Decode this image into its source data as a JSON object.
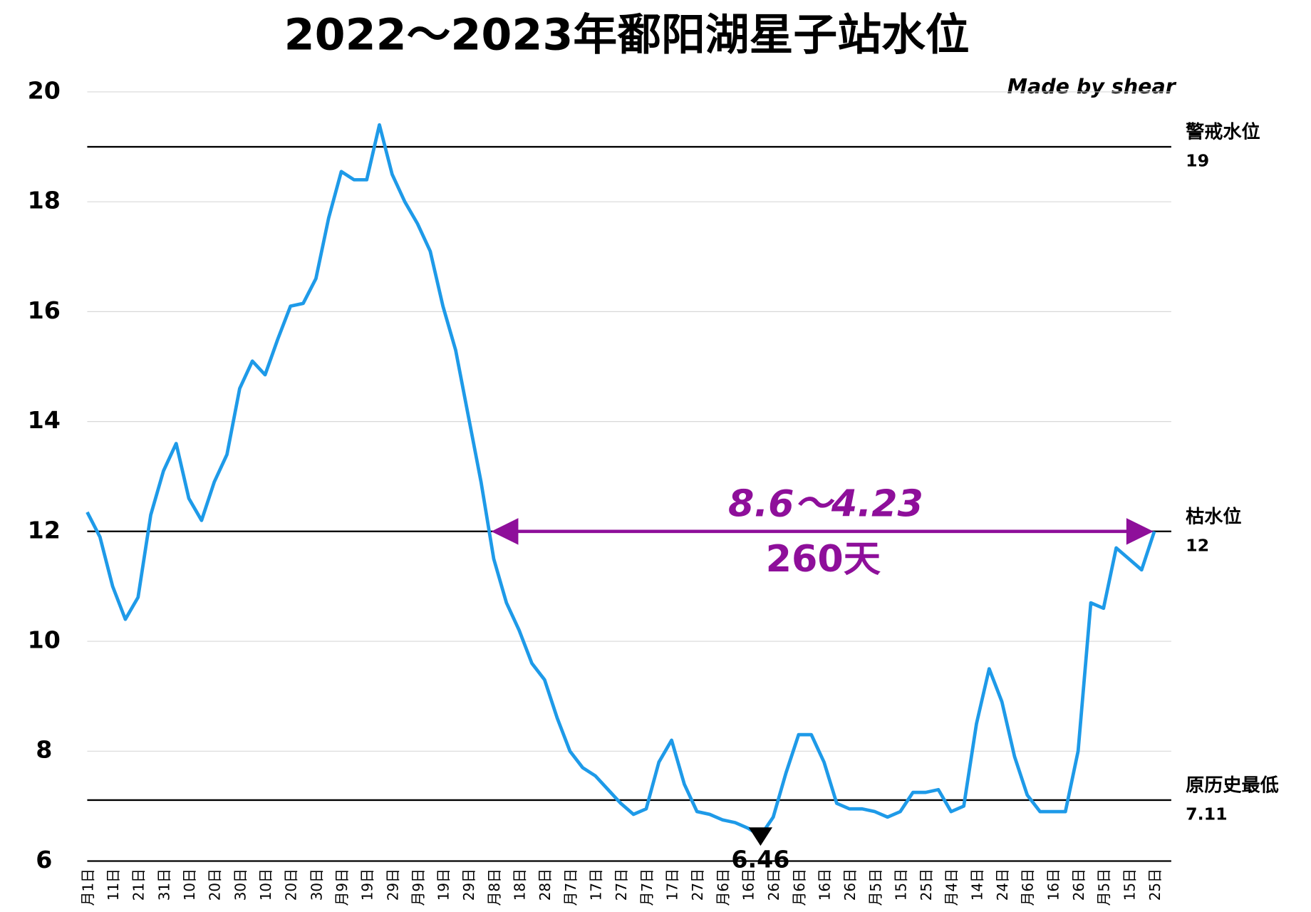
{
  "chart_data": {
    "type": "line",
    "title": "2022～2023年鄱阳湖星子站水位",
    "credit": "Made by shear",
    "ylim": [
      6,
      20
    ],
    "yticks": [
      6,
      8,
      10,
      12,
      14,
      16,
      18,
      20
    ],
    "grid": true,
    "categories": [
      "月1日",
      null,
      "11日",
      null,
      "21日",
      null,
      "31日",
      null,
      "10日",
      null,
      "20日",
      null,
      "30日",
      null,
      "10日",
      null,
      "20日",
      null,
      "30日",
      null,
      "月9日",
      null,
      "19日",
      null,
      "29日",
      null,
      "月9日",
      null,
      "19日",
      null,
      "29日",
      null,
      "月8日",
      null,
      "18日",
      null,
      "28日",
      null,
      "月7日",
      null,
      "17日",
      null,
      "27日",
      null,
      "月7日",
      null,
      "17日",
      null,
      "27日",
      null,
      "月6日",
      null,
      "16日",
      null,
      "26日",
      null,
      "月6日",
      null,
      "16日",
      null,
      "26日",
      null,
      "月5日",
      null,
      "15日",
      null,
      "25日",
      null,
      "月4日",
      null,
      "14日",
      null,
      "24日",
      null,
      "月6日",
      null,
      "16日",
      null,
      "26日",
      null,
      "月5日",
      null,
      "15日",
      null,
      "25日"
    ],
    "series": [
      {
        "name": "星子站水位",
        "color": "#1e9ae8",
        "values": [
          12.35,
          11.9,
          11.0,
          10.4,
          10.8,
          12.3,
          13.1,
          13.6,
          12.6,
          12.2,
          12.9,
          13.4,
          14.6,
          15.1,
          14.85,
          15.5,
          16.1,
          16.15,
          16.6,
          17.7,
          18.55,
          18.4,
          18.4,
          19.4,
          18.5,
          18.0,
          17.6,
          17.1,
          16.1,
          15.3,
          14.1,
          12.9,
          11.5,
          10.7,
          10.2,
          9.6,
          9.3,
          8.6,
          8.0,
          7.7,
          7.55,
          7.3,
          7.05,
          6.85,
          6.95,
          7.8,
          8.2,
          7.4,
          6.9,
          6.85,
          6.75,
          6.7,
          6.6,
          6.46,
          6.8,
          7.6,
          8.3,
          8.3,
          7.8,
          7.05,
          6.95,
          6.95,
          6.9,
          6.8,
          6.9,
          7.25,
          7.25,
          7.3,
          6.9,
          7.0,
          8.5,
          9.5,
          8.9,
          7.9,
          7.2,
          6.9,
          6.9,
          6.9,
          8.0,
          10.7,
          10.6,
          11.7,
          11.5,
          11.3,
          12.0
        ]
      }
    ],
    "reference_lines": [
      {
        "label": "警戒水位",
        "value": 19
      },
      {
        "label": "枯水位",
        "value": 12
      },
      {
        "label": "原历史最低",
        "value": 7.11
      }
    ],
    "annotation": {
      "text": "8.6～4.23",
      "duration": "260天",
      "color": "#8e0f9a"
    }
  }
}
